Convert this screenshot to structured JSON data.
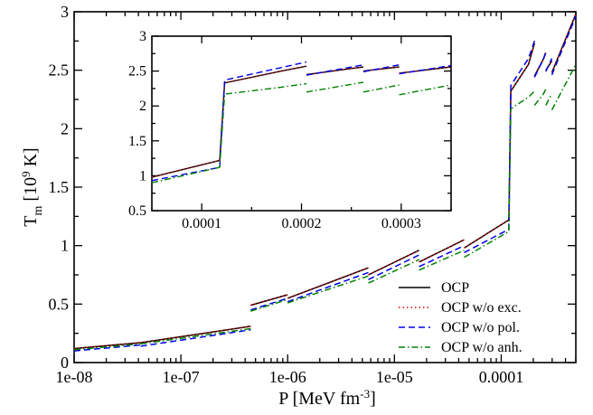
{
  "chart_data": [
    {
      "type": "line",
      "panel": "main",
      "xlabel": "P [MeV fm^-3]",
      "ylabel": "T_m [10^9 K]",
      "xscale": "log",
      "xlim": [
        1e-08,
        0.0005
      ],
      "ylim": [
        0,
        3
      ],
      "xticks": [
        1e-08,
        1e-07,
        1e-06,
        1e-05,
        0.0001
      ],
      "xtick_labels": [
        "1e-08",
        "1e-07",
        "1e-06",
        "1e-05",
        "0.0001"
      ],
      "yticks": [
        0,
        0.5,
        1,
        1.5,
        2,
        2.5,
        3
      ],
      "ytick_labels": [
        "0",
        "0.5",
        "1",
        "1.5",
        "2",
        "2.5",
        "3"
      ],
      "grid": false,
      "legend": "lower-right",
      "series": [
        {
          "name": "OCP",
          "color": "#000000",
          "dash": "solid",
          "segments": [
            [
              [
                1e-08,
                0.12
              ],
              [
                4.2e-08,
                0.17
              ]
            ],
            [
              [
                4.2e-08,
                0.17
              ],
              [
                4.5e-07,
                0.31
              ]
            ],
            [
              [
                4.5e-07,
                0.49
              ],
              [
                1e-06,
                0.58
              ]
            ],
            [
              [
                1e-06,
                0.55
              ],
              [
                5.7e-06,
                0.81
              ]
            ],
            [
              [
                5.7e-06,
                0.75
              ],
              [
                1.7e-05,
                0.96
              ]
            ],
            [
              [
                1.7e-05,
                0.86
              ],
              [
                4.5e-05,
                1.05
              ]
            ],
            [
              [
                4.5e-05,
                0.98
              ],
              [
                0.000118,
                1.22
              ],
              [
                0.000123,
                2.32
              ],
              [
                0.00018,
                2.55
              ],
              [
                0.000205,
                2.73
              ]
            ],
            [
              [
                0.000205,
                2.45
              ],
              [
                0.00025,
                2.6
              ],
              [
                0.000262,
                2.65
              ]
            ],
            [
              [
                0.000262,
                2.5
              ],
              [
                0.000298,
                2.58
              ]
            ],
            [
              [
                0.000298,
                2.48
              ],
              [
                0.0005,
                2.98
              ]
            ]
          ]
        },
        {
          "name": "OCP w/o exc.",
          "color": "#e00000",
          "dash": "dotted",
          "segments": [
            [
              [
                1e-08,
                0.12
              ],
              [
                4.2e-08,
                0.17
              ]
            ],
            [
              [
                4.2e-08,
                0.17
              ],
              [
                4.5e-07,
                0.31
              ]
            ],
            [
              [
                4.5e-07,
                0.49
              ],
              [
                1e-06,
                0.58
              ]
            ],
            [
              [
                1e-06,
                0.55
              ],
              [
                5.7e-06,
                0.81
              ]
            ],
            [
              [
                5.7e-06,
                0.75
              ],
              [
                1.7e-05,
                0.96
              ]
            ],
            [
              [
                1.7e-05,
                0.86
              ],
              [
                4.5e-05,
                1.05
              ]
            ],
            [
              [
                4.5e-05,
                0.98
              ],
              [
                0.000118,
                1.22
              ],
              [
                0.000123,
                2.32
              ],
              [
                0.00018,
                2.55
              ],
              [
                0.000205,
                2.73
              ]
            ],
            [
              [
                0.000205,
                2.45
              ],
              [
                0.00025,
                2.6
              ],
              [
                0.000262,
                2.65
              ]
            ],
            [
              [
                0.000262,
                2.5
              ],
              [
                0.000298,
                2.58
              ]
            ],
            [
              [
                0.000298,
                2.48
              ],
              [
                0.0005,
                2.98
              ]
            ]
          ]
        },
        {
          "name": "OCP w/o pol.",
          "color": "#0000ee",
          "dash": "dashed",
          "segments": [
            [
              [
                1e-08,
                0.1
              ],
              [
                4.2e-08,
                0.15
              ]
            ],
            [
              [
                4.2e-08,
                0.14
              ],
              [
                4.5e-07,
                0.28
              ]
            ],
            [
              [
                4.5e-07,
                0.45
              ],
              [
                1e-06,
                0.55
              ]
            ],
            [
              [
                1e-06,
                0.52
              ],
              [
                5.7e-06,
                0.77
              ]
            ],
            [
              [
                5.7e-06,
                0.71
              ],
              [
                1.7e-05,
                0.92
              ]
            ],
            [
              [
                1.7e-05,
                0.82
              ],
              [
                4.5e-05,
                1.0
              ]
            ],
            [
              [
                4.5e-05,
                0.94
              ],
              [
                0.000118,
                1.14
              ],
              [
                0.000123,
                2.37
              ],
              [
                0.00018,
                2.6
              ],
              [
                0.000205,
                2.75
              ]
            ],
            [
              [
                0.000205,
                2.44
              ],
              [
                0.00025,
                2.6
              ],
              [
                0.000262,
                2.66
              ]
            ],
            [
              [
                0.000262,
                2.49
              ],
              [
                0.000298,
                2.6
              ]
            ],
            [
              [
                0.000298,
                2.46
              ],
              [
                0.0005,
                2.96
              ]
            ]
          ]
        },
        {
          "name": "OCP w/o anh.",
          "color": "#008000",
          "dash": "dashdot",
          "segments": [
            [
              [
                1e-08,
                0.11
              ],
              [
                4.2e-08,
                0.16
              ]
            ],
            [
              [
                4.2e-08,
                0.16
              ],
              [
                4.5e-07,
                0.29
              ]
            ],
            [
              [
                4.5e-07,
                0.44
              ],
              [
                1e-06,
                0.54
              ]
            ],
            [
              [
                1e-06,
                0.51
              ],
              [
                5.7e-06,
                0.74
              ]
            ],
            [
              [
                5.7e-06,
                0.68
              ],
              [
                1.7e-05,
                0.88
              ]
            ],
            [
              [
                1.7e-05,
                0.79
              ],
              [
                4.5e-05,
                0.96
              ]
            ],
            [
              [
                4.5e-05,
                0.9
              ],
              [
                0.000118,
                1.12
              ],
              [
                0.000123,
                2.17
              ],
              [
                0.00018,
                2.27
              ],
              [
                0.000205,
                2.32
              ]
            ],
            [
              [
                0.000205,
                2.2
              ],
              [
                0.00025,
                2.3
              ],
              [
                0.000262,
                2.34
              ]
            ],
            [
              [
                0.000262,
                2.2
              ],
              [
                0.000298,
                2.3
              ]
            ],
            [
              [
                0.000298,
                2.16
              ],
              [
                0.0005,
                2.55
              ]
            ]
          ]
        }
      ]
    },
    {
      "type": "line",
      "panel": "inset",
      "xscale": "linear",
      "xlim": [
        5e-05,
        0.00035
      ],
      "ylim": [
        0.5,
        3
      ],
      "xticks": [
        0.0001,
        0.0002,
        0.0003
      ],
      "xtick_labels": [
        "0.0001",
        "0.0002",
        "0.0003"
      ],
      "yticks": [
        0.5,
        1,
        1.5,
        2,
        2.5,
        3
      ],
      "ytick_labels": [
        "0.5",
        "1",
        "1.5",
        "2",
        "2.5",
        "3"
      ],
      "grid": false,
      "series": [
        {
          "color": "#000000",
          "dash": "solid",
          "segments": [
            [
              [
                5e-05,
                0.98
              ],
              [
                0.000118,
                1.22
              ],
              [
                0.000123,
                2.33
              ],
              [
                0.00018,
                2.5
              ],
              [
                0.000205,
                2.57
              ]
            ],
            [
              [
                0.000205,
                2.45
              ],
              [
                0.000262,
                2.56
              ]
            ],
            [
              [
                0.000262,
                2.5
              ],
              [
                0.000298,
                2.56
              ]
            ],
            [
              [
                0.000298,
                2.47
              ],
              [
                0.00035,
                2.56
              ]
            ]
          ]
        },
        {
          "color": "#e00000",
          "dash": "dotted",
          "segments": [
            [
              [
                5e-05,
                0.98
              ],
              [
                0.000118,
                1.22
              ],
              [
                0.000123,
                2.33
              ],
              [
                0.00018,
                2.5
              ],
              [
                0.000205,
                2.57
              ]
            ],
            [
              [
                0.000205,
                2.45
              ],
              [
                0.000262,
                2.56
              ]
            ],
            [
              [
                0.000262,
                2.5
              ],
              [
                0.000298,
                2.56
              ]
            ],
            [
              [
                0.000298,
                2.47
              ],
              [
                0.00035,
                2.56
              ]
            ]
          ]
        },
        {
          "color": "#0000ee",
          "dash": "dashed",
          "segments": [
            [
              [
                5e-05,
                0.93
              ],
              [
                0.000118,
                1.12
              ],
              [
                0.000123,
                2.37
              ],
              [
                0.00018,
                2.55
              ],
              [
                0.000205,
                2.63
              ]
            ],
            [
              [
                0.000205,
                2.44
              ],
              [
                0.000262,
                2.59
              ]
            ],
            [
              [
                0.000262,
                2.49
              ],
              [
                0.000298,
                2.59
              ]
            ],
            [
              [
                0.000298,
                2.46
              ],
              [
                0.00035,
                2.58
              ]
            ]
          ]
        },
        {
          "color": "#008000",
          "dash": "dashdot",
          "segments": [
            [
              [
                5e-05,
                0.9
              ],
              [
                0.000118,
                1.12
              ],
              [
                0.000123,
                2.17
              ],
              [
                0.00018,
                2.27
              ],
              [
                0.000205,
                2.32
              ]
            ],
            [
              [
                0.000205,
                2.2
              ],
              [
                0.000262,
                2.34
              ]
            ],
            [
              [
                0.000262,
                2.2
              ],
              [
                0.000298,
                2.3
              ]
            ],
            [
              [
                0.000298,
                2.16
              ],
              [
                0.00035,
                2.3
              ]
            ]
          ]
        }
      ]
    }
  ]
}
